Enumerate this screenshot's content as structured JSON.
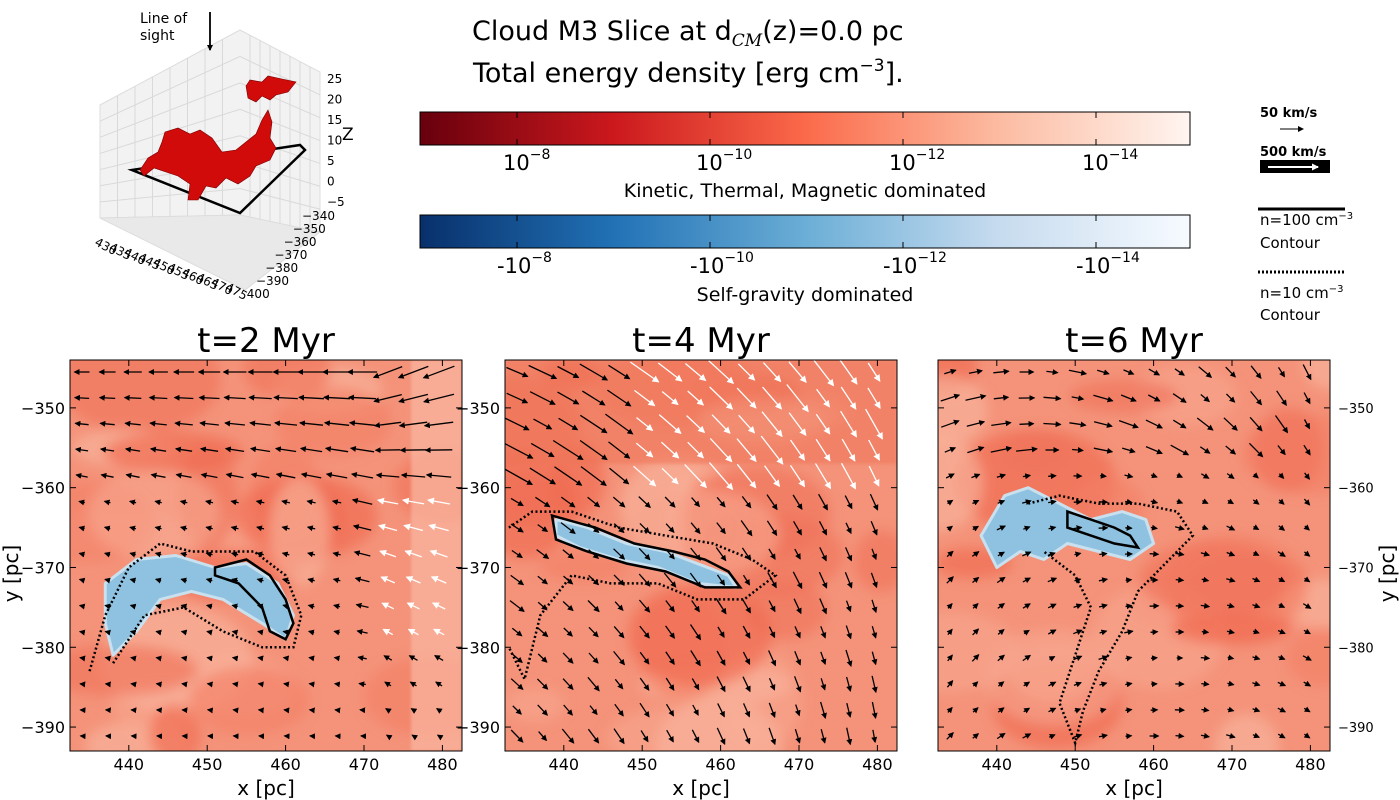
{
  "title": {
    "line1_pre": "Cloud M3  Slice at d",
    "line1_sub": "CM",
    "line1_post": "(z)=0.0 pc",
    "line2_pre": "Total energy density [erg cm",
    "line2_sup": "−3",
    "line2_post": "]."
  },
  "cube3d": {
    "los_label_1": "Line of",
    "los_label_2": "sight",
    "z_axis_label": "Z",
    "z_ticks": [
      "25",
      "20",
      "15",
      "10",
      "5",
      "0",
      "−5"
    ],
    "x_ticks": [
      "430",
      "435",
      "440",
      "445",
      "450",
      "455",
      "460",
      "465",
      "470",
      "475"
    ],
    "y_ticks": [
      "−340",
      "−350",
      "−360",
      "−370",
      "−380",
      "−390",
      "400"
    ],
    "cloud_color": "#d10a0a"
  },
  "colorbars": {
    "red": {
      "labels": [
        {
          "base": "10",
          "exp": "−8"
        },
        {
          "base": "10",
          "exp": "−10"
        },
        {
          "base": "10",
          "exp": "−12"
        },
        {
          "base": "10",
          "exp": "−14"
        }
      ],
      "caption": "Kinetic, Thermal, Magnetic dominated",
      "colors": [
        "#67000d",
        "#cb181d",
        "#fb6a4a",
        "#fcbba1",
        "#fff5f0"
      ]
    },
    "blue": {
      "labels": [
        {
          "base": "-10",
          "exp": "−8"
        },
        {
          "base": "-10",
          "exp": "−10"
        },
        {
          "base": "-10",
          "exp": "−12"
        },
        {
          "base": "-10",
          "exp": "−14"
        }
      ],
      "caption": "Self-gravity dominated",
      "colors": [
        "#08306b",
        "#2171b5",
        "#6baed6",
        "#c6dbef",
        "#f7fbff"
      ]
    }
  },
  "legend": {
    "v50": "50 km/s",
    "v500": "500 km/s",
    "c100_line1_pre": "n=100 cm",
    "c100_sup": "−3",
    "c100_line2": "Contour",
    "c10_line1_pre": "n=10  cm",
    "c10_sup": "−3",
    "c10_line2": "Contour"
  },
  "chart_data": [
    {
      "type": "heatmap",
      "title": "t=2 Myr",
      "xlabel": "x [pc]",
      "ylabel": "y [pc]",
      "xlim": [
        432.5,
        482.5
      ],
      "ylim": [
        -393,
        -344
      ],
      "xticks": [
        440,
        450,
        460,
        470,
        480
      ],
      "yticks": [
        -350,
        -360,
        -370,
        -380,
        -390
      ],
      "field": "total energy density, mostly positive (red) with self-gravity dominated (blue) regions",
      "blue_region": [
        [
          437,
          -372
        ],
        [
          441,
          -369
        ],
        [
          446,
          -368.5
        ],
        [
          451,
          -370
        ],
        [
          455,
          -369.5
        ],
        [
          459,
          -372
        ],
        [
          461,
          -376
        ],
        [
          460,
          -379
        ],
        [
          457,
          -377
        ],
        [
          452,
          -374
        ],
        [
          448,
          -373
        ],
        [
          444,
          -374
        ],
        [
          441,
          -378
        ],
        [
          438,
          -381
        ],
        [
          437,
          -377
        ]
      ],
      "contour_100": [
        [
          451,
          -370
        ],
        [
          455,
          -369
        ],
        [
          458,
          -371
        ],
        [
          460,
          -374
        ],
        [
          461,
          -377
        ],
        [
          460,
          -379
        ],
        [
          458,
          -378
        ],
        [
          457,
          -375
        ],
        [
          454,
          -372
        ],
        [
          451,
          -371
        ]
      ],
      "contour_10": [
        [
          435,
          -383
        ],
        [
          437,
          -376
        ],
        [
          440,
          -370
        ],
        [
          444,
          -367
        ],
        [
          448,
          -368
        ],
        [
          452,
          -368
        ],
        [
          456,
          -368
        ],
        [
          460,
          -371
        ],
        [
          462,
          -376
        ],
        [
          461,
          -380
        ],
        [
          457,
          -380
        ],
        [
          452,
          -378
        ],
        [
          447,
          -375
        ],
        [
          442,
          -376
        ],
        [
          438,
          -382
        ]
      ]
    },
    {
      "type": "heatmap",
      "title": "t=4 Myr",
      "xlabel": "x [pc]",
      "ylabel": "y [pc]",
      "xlim": [
        432.5,
        482.5
      ],
      "ylim": [
        -393,
        -344
      ],
      "xticks": [
        440,
        450,
        460,
        470,
        480
      ],
      "yticks": [
        -350,
        -360,
        -370,
        -380,
        -390
      ],
      "field": "total energy density with a central elongated self-gravity dominated filament",
      "blue_region": [
        [
          439,
          -364
        ],
        [
          443,
          -365
        ],
        [
          448,
          -367
        ],
        [
          453,
          -368
        ],
        [
          457,
          -369.5
        ],
        [
          461,
          -371
        ],
        [
          462,
          -372.5
        ],
        [
          457,
          -372
        ],
        [
          452,
          -370
        ],
        [
          447,
          -369
        ],
        [
          442,
          -367.5
        ],
        [
          439,
          -366
        ]
      ],
      "contour_100": [
        [
          438.5,
          -363.5
        ],
        [
          444,
          -365
        ],
        [
          449,
          -367
        ],
        [
          454,
          -368
        ],
        [
          458,
          -369
        ],
        [
          461,
          -370.5
        ],
        [
          462.5,
          -372.5
        ],
        [
          458,
          -372.5
        ],
        [
          453,
          -370.5
        ],
        [
          448,
          -369.5
        ],
        [
          443,
          -368
        ],
        [
          439,
          -366.5
        ]
      ],
      "contour_10": [
        [
          433,
          -365
        ],
        [
          436,
          -363
        ],
        [
          441,
          -363
        ],
        [
          447,
          -365
        ],
        [
          453,
          -366
        ],
        [
          459,
          -367
        ],
        [
          464,
          -369
        ],
        [
          467,
          -371
        ],
        [
          463,
          -374
        ],
        [
          457,
          -374
        ],
        [
          452,
          -372
        ],
        [
          446,
          -372
        ],
        [
          441,
          -371
        ],
        [
          437,
          -376
        ],
        [
          435,
          -384
        ],
        [
          433,
          -380
        ]
      ]
    },
    {
      "type": "heatmap",
      "title": "t=6 Myr",
      "xlabel": "x [pc]",
      "ylabel": "y [pc]",
      "xlim": [
        432.5,
        482.5
      ],
      "ylim": [
        -393,
        -344
      ],
      "xticks": [
        440,
        450,
        460,
        470,
        480
      ],
      "yticks": [
        -350,
        -360,
        -370,
        -380,
        -390
      ],
      "field": "total energy density with fragmented self-gravity dominated clumps",
      "blue_region": [
        [
          441,
          -361
        ],
        [
          444,
          -360
        ],
        [
          448,
          -362
        ],
        [
          452,
          -364
        ],
        [
          456,
          -363
        ],
        [
          459,
          -364
        ],
        [
          460,
          -367
        ],
        [
          457,
          -369
        ],
        [
          453,
          -368
        ],
        [
          449,
          -367
        ],
        [
          446,
          -369
        ],
        [
          443,
          -368
        ],
        [
          440,
          -370
        ],
        [
          438,
          -366
        ]
      ],
      "contour_100": [
        [
          449,
          -363
        ],
        [
          452,
          -364
        ],
        [
          455,
          -365
        ],
        [
          457,
          -366
        ],
        [
          458,
          -367.5
        ],
        [
          455,
          -367
        ],
        [
          452,
          -366
        ],
        [
          449,
          -365
        ]
      ],
      "contour_10": [
        [
          444,
          -362
        ],
        [
          448,
          -361
        ],
        [
          453,
          -362
        ],
        [
          458,
          -362
        ],
        [
          463,
          -363
        ],
        [
          465,
          -366
        ],
        [
          461,
          -370
        ],
        [
          458,
          -373
        ],
        [
          456,
          -378
        ],
        [
          453,
          -383
        ],
        [
          451,
          -388
        ],
        [
          450,
          -392
        ],
        [
          448,
          -387
        ],
        [
          450,
          -381
        ],
        [
          452,
          -375
        ],
        [
          450,
          -371
        ],
        [
          446,
          -368
        ]
      ]
    }
  ]
}
